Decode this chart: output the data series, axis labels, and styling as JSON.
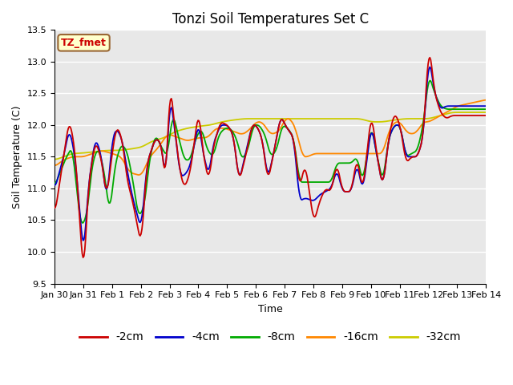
{
  "title": "Tonzi Soil Temperatures Set C",
  "xlabel": "Time",
  "ylabel": "Soil Temperature (C)",
  "ylim": [
    9.5,
    13.5
  ],
  "yticks": [
    9.5,
    10.0,
    10.5,
    11.0,
    11.5,
    12.0,
    12.5,
    13.0,
    13.5
  ],
  "bg_color": "#e8e8e8",
  "line_colors": {
    "-2cm": "#cc0000",
    "-4cm": "#0000cc",
    "-8cm": "#00aa00",
    "-16cm": "#ff8800",
    "-32cm": "#cccc00"
  },
  "legend_label": "TZ_fmet",
  "legend_box_color": "#ffffcc",
  "legend_box_edge": "#996633",
  "x_tick_labels": [
    "Jan 30",
    "Jan 31",
    "Feb 1",
    "Feb 2",
    "Feb 3",
    "Feb 4",
    "Feb 5",
    "Feb 6",
    "Feb 7",
    "Feb 8",
    "Feb 9",
    "Feb 10",
    "Feb 11",
    "Feb 12",
    "Feb 13",
    "Feb 14"
  ],
  "linewidth": 1.3,
  "title_fontsize": 12,
  "axis_fontsize": 9,
  "tick_fontsize": 8,
  "legend_fontsize": 10
}
